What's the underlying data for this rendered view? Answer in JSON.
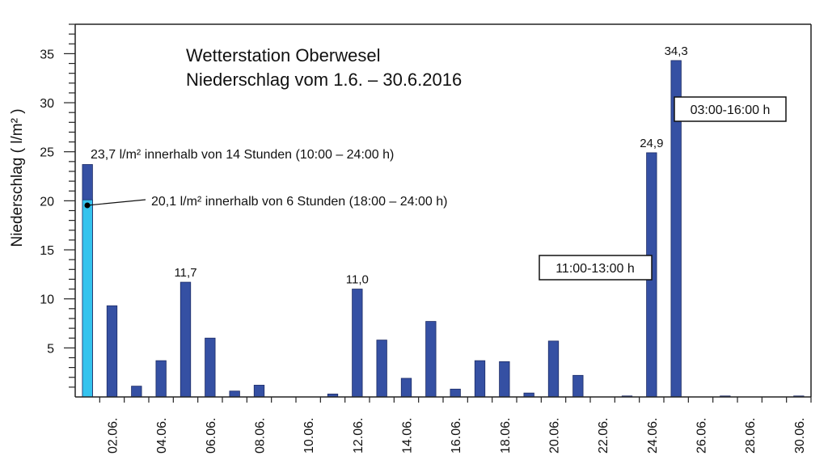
{
  "chart_data": {
    "type": "bar",
    "title": [
      "Wetterstation Oberwesel",
      "Niederschlag vom 1.6. – 30.6.2016"
    ],
    "xlabel": "",
    "ylabel": "Niederschlag ( l/m² )",
    "ylim": [
      0,
      38
    ],
    "yticks": [
      5,
      10,
      15,
      20,
      25,
      30,
      35
    ],
    "grid": false,
    "x": [
      1,
      2,
      3,
      4,
      5,
      6,
      7,
      8,
      9,
      10,
      11,
      12,
      13,
      14,
      15,
      16,
      17,
      18,
      19,
      20,
      21,
      22,
      23,
      24,
      25,
      26,
      27,
      28,
      29,
      30
    ],
    "xtick_labels": [
      "02.06.",
      "04.06.",
      "06.06.",
      "08.06.",
      "10.06.",
      "12.06.",
      "14.06.",
      "16.06.",
      "18.06.",
      "20.06.",
      "22.06.",
      "24.06.",
      "26.06.",
      "28.06.",
      "30.06."
    ],
    "series": [
      {
        "name": "Niederschlag",
        "color": "#3550a3",
        "values": [
          23.7,
          9.3,
          1.1,
          3.7,
          11.7,
          6.0,
          0.6,
          1.2,
          0,
          0,
          0.3,
          11.0,
          5.8,
          1.9,
          7.7,
          0.8,
          3.7,
          3.6,
          0.4,
          5.7,
          2.2,
          0,
          0.1,
          24.9,
          34.3,
          0,
          0.1,
          0,
          0,
          0.1
        ]
      },
      {
        "name": "Niederschlag 18:00–24:00 h (01.06.)",
        "color": "#35c3ee",
        "values": [
          20.1,
          0,
          0,
          0,
          0,
          0,
          0,
          0,
          0,
          0,
          0,
          0,
          0,
          0,
          0,
          0,
          0,
          0,
          0,
          0,
          0,
          0,
          0,
          0,
          0,
          0,
          0,
          0,
          0,
          0
        ]
      }
    ],
    "data_labels": [
      {
        "day": 5,
        "text": "11,7"
      },
      {
        "day": 12,
        "text": "11,0"
      },
      {
        "day": 24,
        "text": "24,9"
      },
      {
        "day": 25,
        "text": "34,3"
      }
    ],
    "annotations": {
      "total_day1": "23,7 l/m² innerhalb von 14 Stunden (10:00 – 24:00 h)",
      "part_day1": "20,1 l/m² innerhalb von 6 Stunden (18:00 – 24:00 h)",
      "box_day25": "03:00-16:00 h",
      "box_day24": "11:00-13:00 h"
    }
  }
}
